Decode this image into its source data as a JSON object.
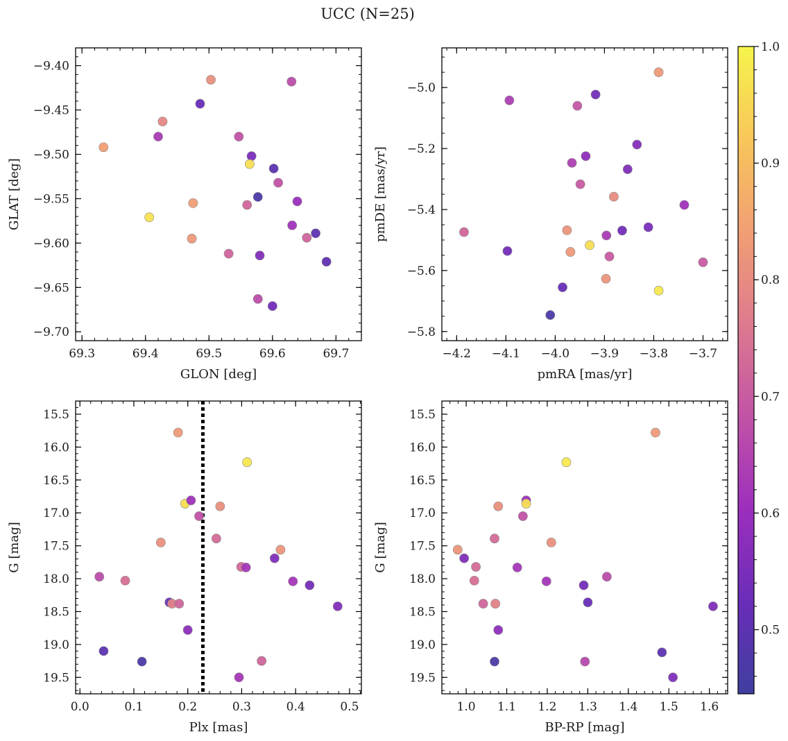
{
  "figure": {
    "title": "UCC (N=25)"
  },
  "colormap": {
    "name": "plasma",
    "stops": [
      "#3f3f9f",
      "#6a2db8",
      "#9c2fbd",
      "#c253a6",
      "#de7a8e",
      "#f19f74",
      "#f8c65a",
      "#f6f44c"
    ],
    "range": [
      0.445,
      1.0
    ],
    "ticks": [
      "0.5",
      "0.6",
      "0.7",
      "0.8",
      "0.9",
      "1.0"
    ]
  },
  "chart_data": [
    {
      "type": "scatter",
      "xlabel": "GLON [deg]",
      "ylabel": "GLAT [deg]",
      "xlim": [
        69.29,
        69.74
      ],
      "ylim": [
        -9.71,
        -9.38
      ],
      "xticks": [
        "69.3",
        "69.4",
        "69.5",
        "69.6",
        "69.7"
      ],
      "yticks": [
        "-9.40",
        "-9.45",
        "-9.50",
        "-9.55",
        "-9.60",
        "-9.65",
        "-9.70"
      ],
      "x": [
        69.503,
        69.63,
        69.486,
        69.427,
        69.334,
        69.42,
        69.547,
        69.567,
        69.564,
        69.602,
        69.609,
        69.577,
        69.475,
        69.56,
        69.639,
        69.406,
        69.631,
        69.668,
        69.473,
        69.654,
        69.531,
        69.58,
        69.685,
        69.577,
        69.6
      ],
      "y": [
        -9.416,
        -9.418,
        -9.443,
        -9.463,
        -9.492,
        -9.48,
        -9.48,
        -9.502,
        -9.511,
        -9.516,
        -9.532,
        -9.548,
        -9.555,
        -9.557,
        -9.553,
        -9.571,
        -9.58,
        -9.589,
        -9.595,
        -9.594,
        -9.612,
        -9.614,
        -9.621,
        -9.663,
        -9.671
      ],
      "c": [
        0.81,
        0.67,
        0.52,
        0.79,
        0.84,
        0.63,
        0.68,
        0.55,
        0.96,
        0.5,
        0.68,
        0.47,
        0.84,
        0.72,
        0.6,
        0.97,
        0.61,
        0.5,
        0.83,
        0.72,
        0.72,
        0.56,
        0.51,
        0.67,
        0.54
      ]
    },
    {
      "type": "scatter",
      "xlabel": "pmRA [mas/yr]",
      "ylabel": "pmDE [mas/yr]",
      "xlim": [
        -4.23,
        -3.65
      ],
      "ylim": [
        -5.83,
        -4.87
      ],
      "xticks": [
        "-4.2",
        "-4.1",
        "-4.0",
        "-3.9",
        "-3.8",
        "-3.7"
      ],
      "yticks": [
        "-5.0",
        "-5.2",
        "-5.4",
        "-5.6",
        "-5.8"
      ],
      "x": [
        -3.79,
        -4.093,
        -3.918,
        -3.955,
        -3.834,
        -3.966,
        -3.938,
        -3.853,
        -3.949,
        -3.881,
        -3.738,
        -4.185,
        -3.976,
        -4.097,
        -3.811,
        -3.864,
        -3.93,
        -3.896,
        -3.969,
        -3.89,
        -3.7,
        -3.897,
        -3.79,
        -3.985,
        -4.01
      ],
      "y": [
        -4.95,
        -5.042,
        -5.023,
        -5.06,
        -5.187,
        -5.247,
        -5.225,
        -5.268,
        -5.317,
        -5.358,
        -5.385,
        -5.474,
        -5.468,
        -5.536,
        -5.458,
        -5.469,
        -5.517,
        -5.485,
        -5.539,
        -5.554,
        -5.573,
        -5.627,
        -5.666,
        -5.655,
        -5.746
      ],
      "c": [
        0.83,
        0.64,
        0.54,
        0.69,
        0.57,
        0.64,
        0.58,
        0.56,
        0.7,
        0.8,
        0.61,
        0.72,
        0.82,
        0.54,
        0.55,
        0.54,
        0.96,
        0.63,
        0.83,
        0.7,
        0.7,
        0.82,
        0.98,
        0.52,
        0.47
      ]
    },
    {
      "type": "scatter",
      "xlabel": "Plx [mas]",
      "ylabel": "G [mag]",
      "xlim": [
        -0.008,
        0.522
      ],
      "ylim": [
        19.75,
        15.3
      ],
      "ylim_inverted": true,
      "xticks": [
        "0.0",
        "0.1",
        "0.2",
        "0.3",
        "0.4",
        "0.5"
      ],
      "yticks": [
        "15.5",
        "16.0",
        "16.5",
        "17.0",
        "17.5",
        "18.0",
        "18.5",
        "19.0",
        "19.5"
      ],
      "vline": {
        "x": 0.228,
        "style": "dotted",
        "color": "#000000"
      },
      "x": [
        0.182,
        0.31,
        0.195,
        0.206,
        0.26,
        0.221,
        0.15,
        0.253,
        0.372,
        0.361,
        0.299,
        0.308,
        0.036,
        0.084,
        0.395,
        0.426,
        0.166,
        0.171,
        0.184,
        0.478,
        0.2,
        0.044,
        0.115,
        0.337,
        0.295
      ],
      "y": [
        15.78,
        16.23,
        16.86,
        16.81,
        16.9,
        17.05,
        17.45,
        17.39,
        17.56,
        17.69,
        17.82,
        17.83,
        17.97,
        18.03,
        18.04,
        18.1,
        18.36,
        18.38,
        18.38,
        18.42,
        18.78,
        19.1,
        19.26,
        19.25,
        19.5
      ],
      "c": [
        0.83,
        0.98,
        0.96,
        0.61,
        0.81,
        0.68,
        0.81,
        0.73,
        0.82,
        0.56,
        0.73,
        0.62,
        0.67,
        0.74,
        0.62,
        0.54,
        0.52,
        0.78,
        0.72,
        0.56,
        0.58,
        0.5,
        0.47,
        0.72,
        0.62
      ]
    },
    {
      "type": "scatter",
      "xlabel": "BP-RP [mag]",
      "ylabel": "G [mag]",
      "xlim": [
        0.94,
        1.645
      ],
      "ylim": [
        19.75,
        15.3
      ],
      "ylim_inverted": true,
      "xticks": [
        "1.0",
        "1.1",
        "1.2",
        "1.3",
        "1.4",
        "1.5",
        "1.6"
      ],
      "yticks": [
        "15.5",
        "16.0",
        "16.5",
        "17.0",
        "17.5",
        "18.0",
        "18.5",
        "19.0",
        "19.5"
      ],
      "x": [
        1.467,
        1.247,
        1.148,
        1.148,
        1.079,
        1.14,
        1.07,
        1.21,
        0.979,
        0.995,
        1.024,
        1.126,
        1.347,
        1.02,
        1.198,
        1.29,
        1.3,
        1.042,
        1.072,
        1.609,
        1.079,
        1.483,
        1.07,
        1.51,
        1.293
      ],
      "y": [
        15.78,
        16.23,
        16.81,
        16.86,
        16.9,
        17.05,
        17.39,
        17.45,
        17.56,
        17.69,
        17.82,
        17.83,
        17.97,
        18.03,
        18.04,
        18.1,
        18.36,
        18.38,
        18.38,
        18.42,
        18.78,
        19.12,
        19.26,
        19.5,
        19.26
      ],
      "c": [
        0.83,
        0.98,
        0.61,
        0.96,
        0.81,
        0.68,
        0.73,
        0.81,
        0.82,
        0.56,
        0.73,
        0.62,
        0.67,
        0.74,
        0.62,
        0.54,
        0.52,
        0.72,
        0.78,
        0.56,
        0.58,
        0.5,
        0.47,
        0.56,
        0.66
      ]
    }
  ]
}
